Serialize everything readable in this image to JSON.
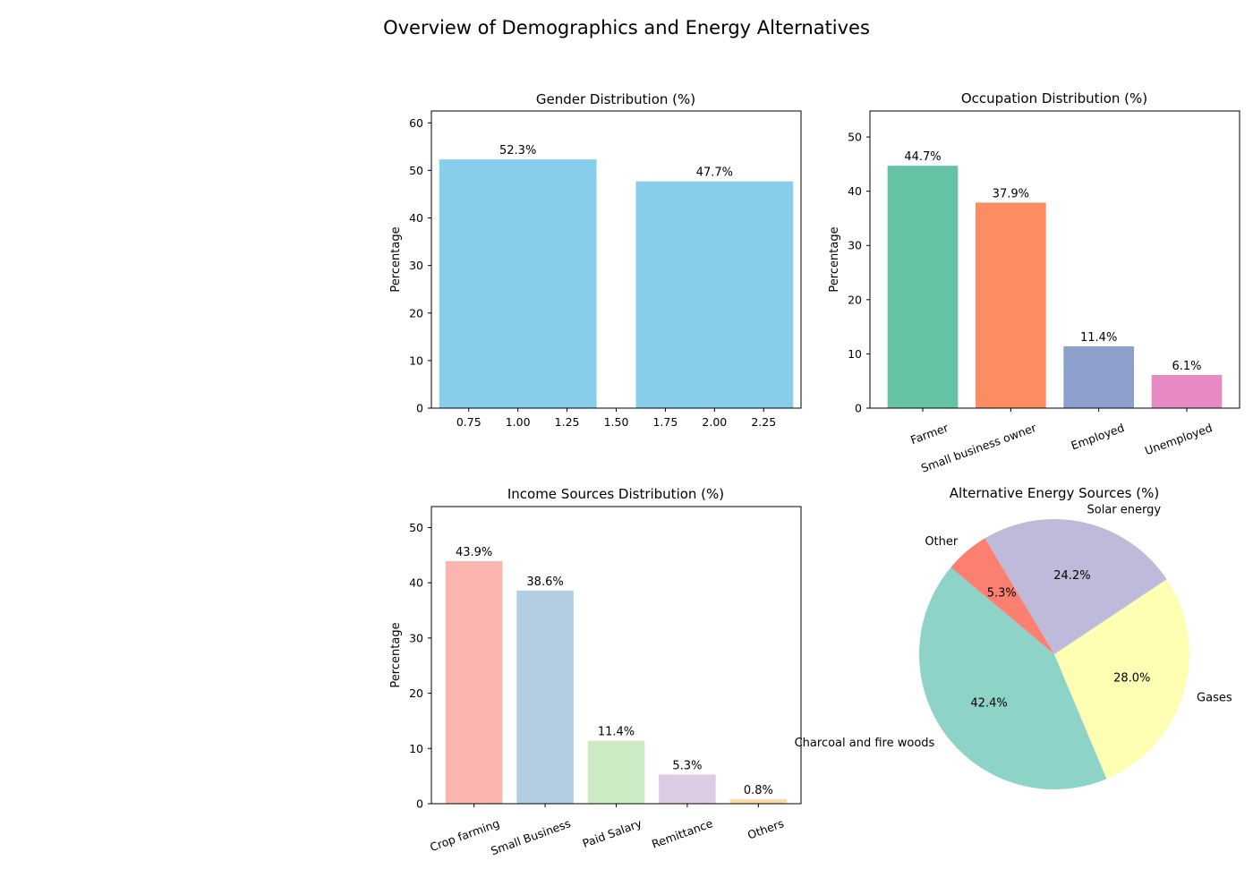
{
  "figure": {
    "title": "Overview of Demographics and Energy Alternatives"
  },
  "chart_data": [
    {
      "type": "bar",
      "title": "Gender Distribution (%)",
      "ylabel": "Percentage",
      "x": [
        1,
        2
      ],
      "values": [
        52.3,
        47.7
      ],
      "value_labels": [
        "52.3%",
        "47.7%"
      ],
      "xlim": [
        0.56,
        2.44
      ],
      "xticks": [
        0.75,
        1.0,
        1.25,
        1.5,
        1.75,
        2.0,
        2.25
      ],
      "xtick_labels": [
        "0.75",
        "1.00",
        "1.25",
        "1.50",
        "1.75",
        "2.00",
        "2.25"
      ],
      "ylim": [
        0,
        62.5
      ],
      "yticks": [
        0,
        10,
        20,
        30,
        40,
        50,
        60
      ],
      "colors": [
        "#87ceeb",
        "#87ceeb"
      ],
      "grid": false
    },
    {
      "type": "bar",
      "title": "Occupation Distribution (%)",
      "ylabel": "Percentage",
      "categories": [
        "Farmer",
        "Small business owner",
        "Employed",
        "Unemployed"
      ],
      "values": [
        44.7,
        37.9,
        11.4,
        6.1
      ],
      "value_labels": [
        "44.7%",
        "37.9%",
        "11.4%",
        "6.1%"
      ],
      "ylim": [
        0,
        54.8
      ],
      "yticks": [
        0,
        10,
        20,
        30,
        40,
        50
      ],
      "colors": [
        "#66c2a5",
        "#fc8d62",
        "#8da0cb",
        "#e78ac3"
      ],
      "grid": false
    },
    {
      "type": "bar",
      "title": "Income Sources Distribution (%)",
      "ylabel": "Percentage",
      "categories": [
        "Crop farming",
        "Small Business",
        "Paid Salary",
        "Remittance",
        "Others"
      ],
      "values": [
        43.9,
        38.6,
        11.4,
        5.3,
        0.8
      ],
      "value_labels": [
        "43.9%",
        "38.6%",
        "11.4%",
        "5.3%",
        "0.8%"
      ],
      "ylim": [
        0,
        53.8
      ],
      "yticks": [
        0,
        10,
        20,
        30,
        40,
        50
      ],
      "colors": [
        "#fbb4ae",
        "#b3cde3",
        "#ccebc5",
        "#decbe4",
        "#fed9a6"
      ],
      "grid": false
    },
    {
      "type": "pie",
      "title": "Alternative Energy Sources (%)",
      "labels": [
        "Charcoal and fire woods",
        "Gases",
        "Solar energy",
        "Other"
      ],
      "values": [
        42.4,
        28.0,
        24.2,
        5.3
      ],
      "value_labels": [
        "42.4%",
        "28.0%",
        "24.2%",
        "5.3%"
      ],
      "colors": [
        "#8dd3c7",
        "#ffffb3",
        "#bebada",
        "#fb8072"
      ],
      "start_angle_deg": 140,
      "direction": "counterclockwise"
    }
  ]
}
